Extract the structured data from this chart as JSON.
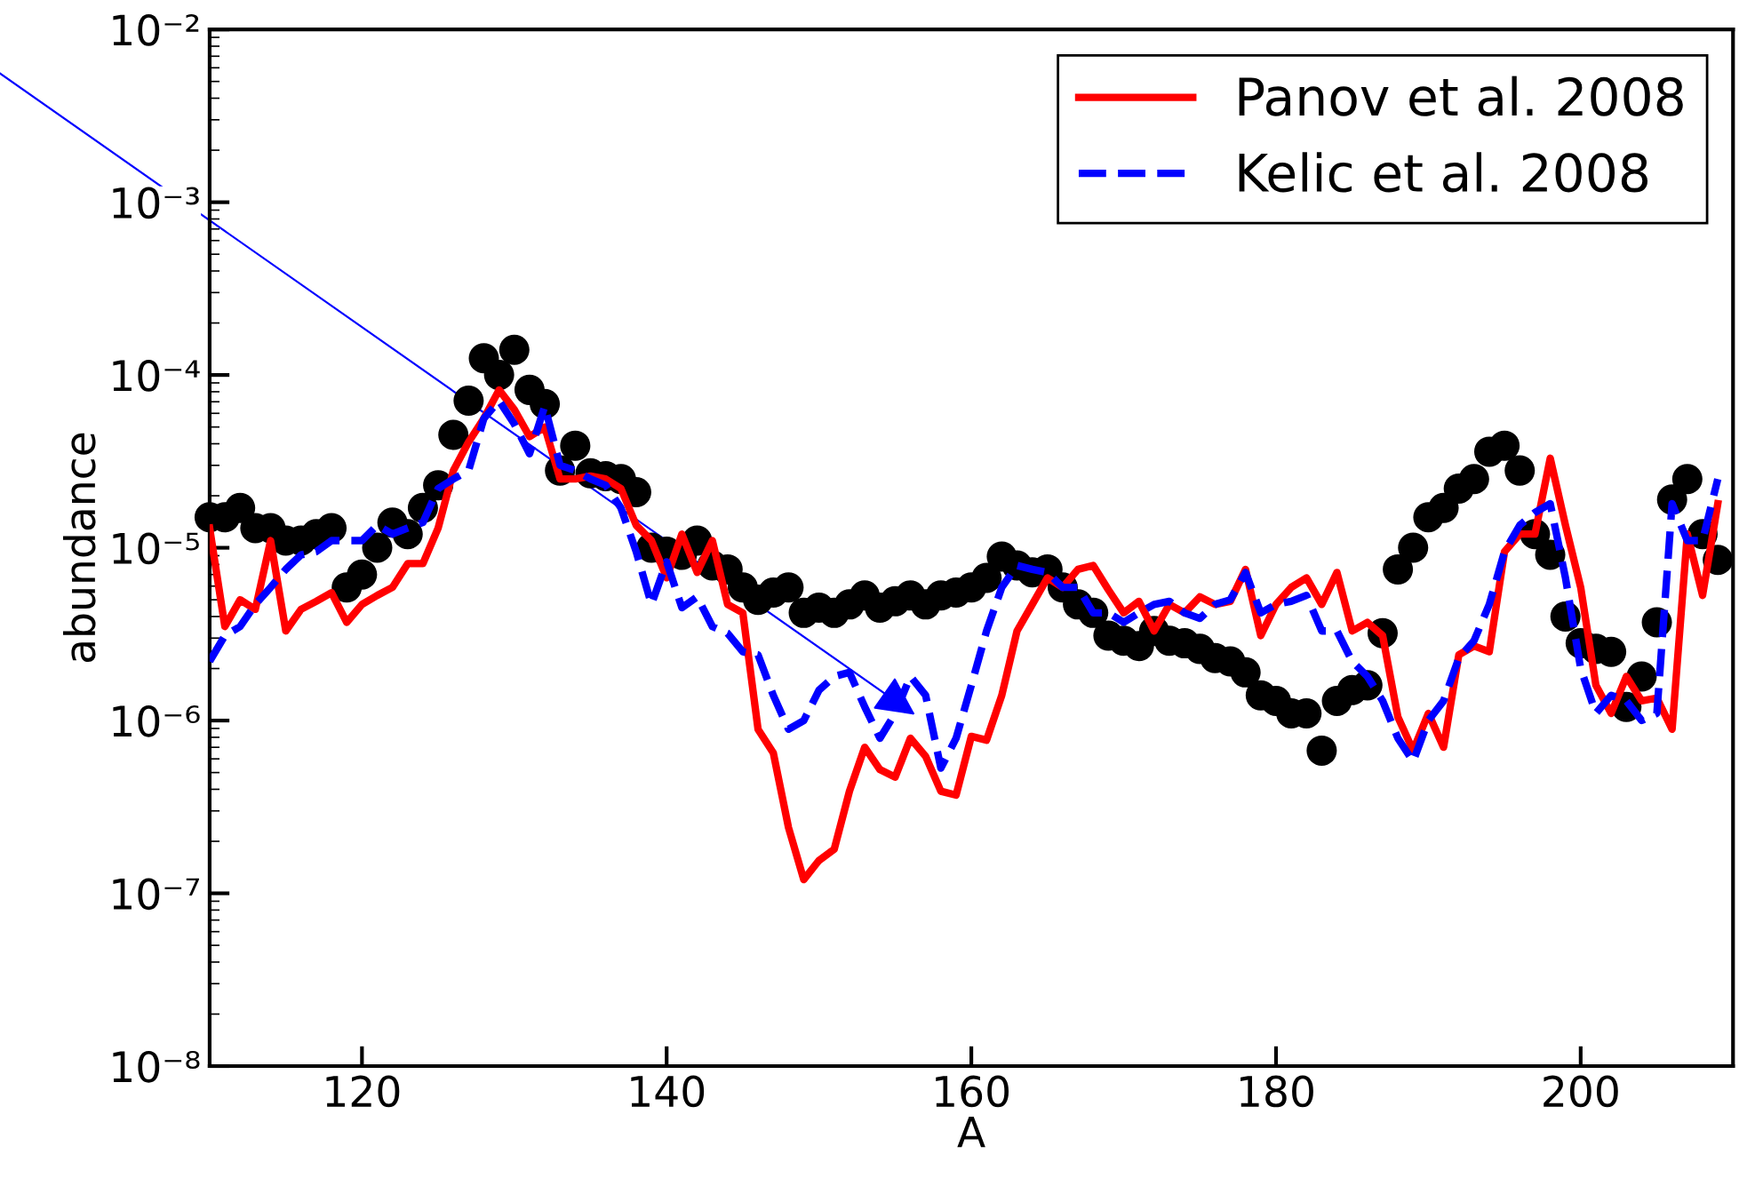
{
  "chart_data": {
    "type": "line",
    "xlabel": "A",
    "ylabel": "abundance",
    "log": "y",
    "grid": false,
    "legend": "top right",
    "xlim": [
      110,
      210
    ],
    "xticks": [
      120,
      140,
      160,
      180,
      200
    ],
    "ylim": [
      1e-08,
      0.01
    ],
    "yticks": [
      {
        "value": 1e-08,
        "label": "10⁻⁸"
      },
      {
        "value": 1e-07,
        "label": "10⁻⁷"
      },
      {
        "value": 1e-06,
        "label": "10⁻⁶"
      },
      {
        "value": 1e-05,
        "label": "10⁻⁵"
      },
      {
        "value": 0.0001,
        "label": "10⁻⁴"
      },
      {
        "value": 0.001,
        "label": "10⁻³"
      },
      {
        "value": 0.01,
        "label": "10⁻²"
      }
    ],
    "x": [
      110,
      111,
      112,
      113,
      114,
      115,
      116,
      117,
      118,
      119,
      120,
      121,
      122,
      123,
      124,
      125,
      126,
      127,
      128,
      129,
      130,
      131,
      132,
      133,
      134,
      135,
      136,
      137,
      138,
      139,
      140,
      141,
      142,
      143,
      144,
      145,
      146,
      147,
      148,
      149,
      150,
      151,
      152,
      153,
      154,
      155,
      156,
      157,
      158,
      159,
      160,
      161,
      162,
      163,
      164,
      165,
      166,
      167,
      168,
      169,
      170,
      171,
      172,
      173,
      174,
      175,
      176,
      177,
      178,
      179,
      180,
      181,
      182,
      183,
      184,
      185,
      186,
      187,
      188,
      189,
      190,
      191,
      192,
      193,
      194,
      195,
      196,
      197,
      198,
      199,
      200,
      201,
      202,
      203,
      204,
      205,
      206,
      207,
      208,
      209
    ],
    "series": [
      {
        "type": "scatter",
        "marker": "circle",
        "color": "#000000",
        "values": [
          1.5e-05,
          1.5e-05,
          1.7e-05,
          1.3e-05,
          1.3e-05,
          1.1e-05,
          1.1e-05,
          1.2e-05,
          1.3e-05,
          5.9e-06,
          7e-06,
          1e-05,
          1.4e-05,
          1.2e-05,
          1.7e-05,
          2.3e-05,
          4.5e-05,
          7.1e-05,
          0.000125,
          0.0001,
          0.00014,
          8.2e-05,
          6.8e-05,
          2.8e-05,
          3.9e-05,
          2.7e-05,
          2.6e-05,
          2.5e-05,
          2.1e-05,
          1e-05,
          9.5e-06,
          9.1e-06,
          1.1e-05,
          7.9e-06,
          7.5e-06,
          5.9e-06,
          5e-06,
          5.5e-06,
          5.9e-06,
          4.2e-06,
          4.5e-06,
          4.2e-06,
          4.7e-06,
          5.3e-06,
          4.5e-06,
          4.9e-06,
          5.3e-06,
          4.7e-06,
          5.3e-06,
          5.5e-06,
          5.9e-06,
          6.7e-06,
          8.9e-06,
          7.9e-06,
          7.2e-06,
          7.5e-06,
          5.9e-06,
          4.7e-06,
          4.2e-06,
          3.1e-06,
          2.9e-06,
          2.7e-06,
          3.3e-06,
          2.9e-06,
          2.8e-06,
          2.6e-06,
          2.3e-06,
          2.2e-06,
          1.9e-06,
          1.4e-06,
          1.3e-06,
          1.1e-06,
          1.1e-06,
          6.7e-07,
          1.3e-06,
          1.5e-06,
          1.6e-06,
          3.2e-06,
          7.5e-06,
          1e-05,
          1.5e-05,
          1.7e-05,
          2.2e-05,
          2.5e-05,
          3.6e-05,
          3.9e-05,
          2.8e-05,
          1.2e-05,
          9.1e-06,
          4e-06,
          2.8e-06,
          2.6e-06,
          2.5e-06,
          1.2e-06,
          1.8e-06,
          3.7e-06,
          1.9e-05,
          2.5e-05,
          1.2e-05,
          8.5e-06
        ]
      },
      {
        "name": "Panov et al. 2008",
        "line_style": "solid",
        "color": "#ff0000",
        "values": [
          1.3e-05,
          3.5e-06,
          5e-06,
          4.4e-06,
          1.1e-05,
          3.3e-06,
          4.4e-06,
          4.9e-06,
          5.5e-06,
          3.7e-06,
          4.7e-06,
          5.3e-06,
          5.9e-06,
          8.1e-06,
          8.1e-06,
          1.3e-05,
          2.8e-05,
          4.1e-05,
          5.6e-05,
          8.2e-05,
          6.3e-05,
          4.4e-05,
          5e-05,
          2.5e-05,
          2.5e-05,
          2.6e-05,
          2.5e-05,
          2.2e-05,
          1.35e-05,
          1.1e-05,
          6.7e-06,
          1.2e-05,
          7.2e-06,
          1.1e-05,
          4.7e-06,
          4.2e-06,
          8.9e-07,
          6.5e-07,
          2.4e-07,
          1.2e-07,
          1.55e-07,
          1.8e-07,
          3.9e-07,
          7e-07,
          5.2e-07,
          4.7e-07,
          7.9e-07,
          6.2e-07,
          3.9e-07,
          3.7e-07,
          8.1e-07,
          7.7e-07,
          1.4e-06,
          3.3e-06,
          4.7e-06,
          6.7e-06,
          5.9e-06,
          7.5e-06,
          7.9e-06,
          5.7e-06,
          4.2e-06,
          4.9e-06,
          3.3e-06,
          4.7e-06,
          4.2e-06,
          5.2e-06,
          4.7e-06,
          4.9e-06,
          7.5e-06,
          3.1e-06,
          4.7e-06,
          5.9e-06,
          6.7e-06,
          4.7e-06,
          7.2e-06,
          3.3e-06,
          3.7e-06,
          3.1e-06,
          1.05e-06,
          6.7e-07,
          1.1e-06,
          7e-07,
          2.4e-06,
          2.7e-06,
          2.5e-06,
          9.5e-06,
          1.2e-05,
          1.2e-05,
          3.3e-05,
          1.35e-05,
          5.9e-06,
          1.6e-06,
          1.1e-06,
          1.8e-06,
          1.3e-06,
          1.35e-06,
          8.9e-07,
          1.2e-05,
          5.3e-06,
          1.8e-05
        ]
      },
      {
        "name": "Kelic et al. 2008",
        "line_style": "dashed",
        "color": "#0000ff",
        "values": [
          2.2e-06,
          3.1e-06,
          3.5e-06,
          4.7e-06,
          5.9e-06,
          7.5e-06,
          9.1e-06,
          9.5e-06,
          1.1e-05,
          1.1e-05,
          1.1e-05,
          1.35e-05,
          1.2e-05,
          1.3e-05,
          1.4e-05,
          2.2e-05,
          2.5e-05,
          2.8e-05,
          5.6e-05,
          7.1e-05,
          5.2e-05,
          3.5e-05,
          6.6e-05,
          3e-05,
          2.8e-05,
          2.5e-05,
          2.3e-05,
          1.7e-05,
          9.5e-06,
          4.7e-06,
          8.3e-06,
          4.5e-06,
          5.2e-06,
          3.5e-06,
          3.2e-06,
          2.5e-06,
          2.4e-06,
          1.4e-06,
          8.9e-07,
          1e-06,
          1.5e-06,
          1.8e-06,
          1.9e-06,
          1.2e-06,
          7.9e-07,
          1.1e-06,
          1.8e-06,
          1.4e-06,
          5.3e-07,
          7.9e-07,
          1.6e-06,
          3.3e-06,
          5.9e-06,
          7.9e-06,
          7.5e-06,
          7.2e-06,
          5.9e-06,
          5.9e-06,
          4.2e-06,
          4.2e-06,
          3.7e-06,
          4.2e-06,
          4.7e-06,
          4.9e-06,
          4.2e-06,
          3.9e-06,
          4.7e-06,
          5e-06,
          7.2e-06,
          4.2e-06,
          4.7e-06,
          4.9e-06,
          5.3e-06,
          3.3e-06,
          3.3e-06,
          2.2e-06,
          1.8e-06,
          1.3e-06,
          7.9e-07,
          5.8e-07,
          1e-06,
          1.3e-06,
          2.3e-06,
          2.9e-06,
          4.7e-06,
          9.5e-06,
          1.35e-05,
          1.6e-05,
          1.8e-05,
          6.7e-06,
          2e-06,
          1.1e-06,
          1.4e-06,
          1.3e-06,
          1e-06,
          1.1e-06,
          1.8e-05,
          1.1e-05,
          1.1e-05,
          2.5e-05
        ]
      }
    ]
  }
}
